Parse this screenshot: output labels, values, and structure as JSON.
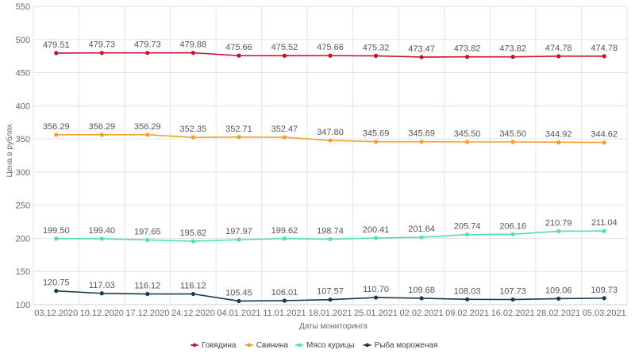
{
  "chart_data": {
    "type": "line",
    "title": "",
    "xlabel": "Даты мониторинга",
    "ylabel": "Цена в рублях",
    "ylim": [
      100,
      550
    ],
    "yticks": [
      100,
      150,
      200,
      250,
      300,
      350,
      400,
      450,
      500,
      550
    ],
    "grid": true,
    "legend_position": "bottom",
    "categories": [
      "03.12.2020",
      "10.12.2020",
      "17.12.2020",
      "24.12.2020",
      "04.01.2021",
      "11.01.2021",
      "18.01.2021",
      "25.01.2021",
      "02.02.2021",
      "09.02.2021",
      "16.02.2021",
      "28.02.2021",
      "05.03.2021"
    ],
    "series": [
      {
        "name": "Говядина",
        "color": "#c8102e",
        "values": [
          479.51,
          479.73,
          479.73,
          479.88,
          475.66,
          475.52,
          475.66,
          475.32,
          473.47,
          473.82,
          473.82,
          474.78,
          474.78
        ],
        "labels": [
          "479.51",
          "479.73",
          "479.73",
          "479.88",
          "475.66",
          "475.52",
          "475.66",
          "475.32",
          "473.47",
          "473.82",
          "473.82",
          "474.78",
          "474.78"
        ]
      },
      {
        "name": "Свинина",
        "color": "#f0a12b",
        "values": [
          356.29,
          356.29,
          356.29,
          352.35,
          352.71,
          352.47,
          347.8,
          345.69,
          345.69,
          345.5,
          345.5,
          344.92,
          344.62
        ],
        "labels": [
          "356.29",
          "356.29",
          "356.29",
          "352.35",
          "352.71",
          "352.47",
          "347.80",
          "345.69",
          "345.69",
          "345.50",
          "345.50",
          "344.92",
          "344.62"
        ]
      },
      {
        "name": "Мясо курицы",
        "color": "#4ee0b4",
        "values": [
          199.5,
          199.4,
          197.65,
          195.62,
          197.97,
          199.62,
          198.74,
          200.41,
          201.64,
          205.74,
          206.16,
          210.79,
          211.04
        ],
        "labels": [
          "199.50",
          "199.40",
          "197.65",
          "195.62",
          "197.97",
          "199.62",
          "198.74",
          "200.41",
          "201.64",
          "205.74",
          "206.16",
          "210.79",
          "211.04"
        ]
      },
      {
        "name": "Рыба мороженая",
        "color": "#163a52",
        "values": [
          120.75,
          117.03,
          116.12,
          116.12,
          105.45,
          106.01,
          107.57,
          110.7,
          109.68,
          108.03,
          107.73,
          109.06,
          109.73
        ],
        "labels": [
          "120.75",
          "117.03",
          "116.12",
          "116.12",
          "105.45",
          "106.01",
          "107.57",
          "110.70",
          "109.68",
          "108.03",
          "107.73",
          "109.06",
          "109.73"
        ]
      }
    ]
  }
}
